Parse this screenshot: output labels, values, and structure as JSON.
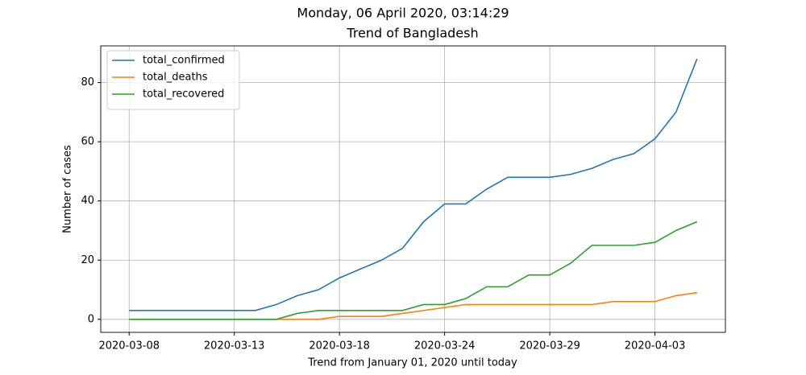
{
  "chart_data": {
    "type": "line",
    "suptitle": "Monday, 06 April 2020, 03:14:29",
    "title": "Trend of Bangladesh",
    "x_label": "Trend from January 01, 2020 until today",
    "y_label": "Number of cases",
    "categories": [
      "2020-03-08",
      null,
      null,
      null,
      null,
      "2020-03-13",
      null,
      null,
      null,
      null,
      "2020-03-18",
      null,
      null,
      null,
      null,
      "2020-03-24",
      null,
      null,
      null,
      null,
      "2020-03-29",
      null,
      null,
      null,
      null,
      "2020-04-03",
      null,
      null
    ],
    "series": [
      {
        "name": "total_confirmed",
        "color": "#1f77b4",
        "values": [
          3,
          3,
          3,
          3,
          3,
          3,
          3,
          5,
          8,
          10,
          14,
          17,
          20,
          24,
          33,
          39,
          39,
          44,
          48,
          48,
          48,
          49,
          51,
          54,
          56,
          61,
          70,
          88
        ]
      },
      {
        "name": "total_deaths",
        "color": "#ff7f0e",
        "values": [
          0,
          0,
          0,
          0,
          0,
          0,
          0,
          0,
          0,
          0,
          1,
          1,
          1,
          2,
          3,
          4,
          5,
          5,
          5,
          5,
          5,
          5,
          5,
          6,
          6,
          6,
          8,
          9
        ]
      },
      {
        "name": "total_recovered",
        "color": "#2ca02c",
        "values": [
          0,
          0,
          0,
          0,
          0,
          0,
          0,
          0,
          2,
          3,
          3,
          3,
          3,
          3,
          5,
          5,
          7,
          11,
          11,
          15,
          15,
          19,
          25,
          25,
          25,
          26,
          30,
          33
        ]
      }
    ],
    "ylim": [
      -4.4,
      92.4
    ],
    "yticks": [
      0,
      20,
      40,
      60,
      80
    ],
    "grid": true,
    "legend": "upper-left"
  }
}
